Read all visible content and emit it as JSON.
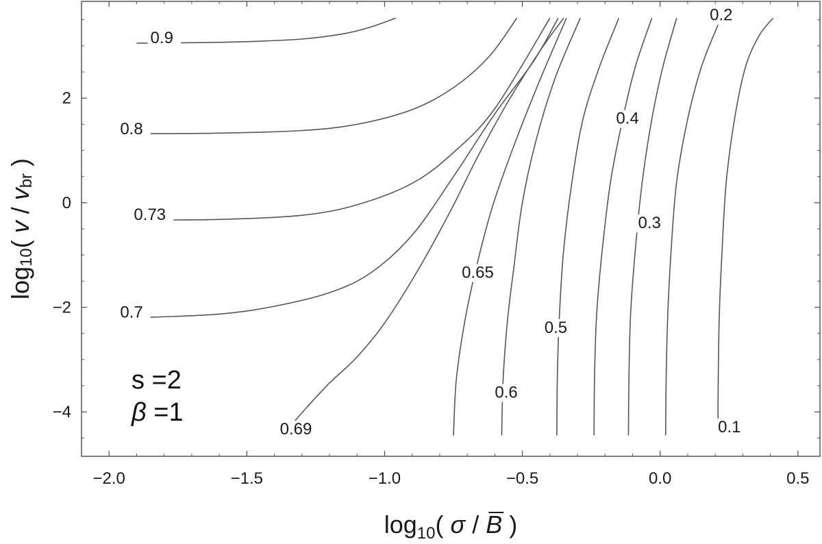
{
  "chart_data": {
    "type": "contour",
    "title": "",
    "xlabel": {
      "prefix": "log",
      "sub": "10",
      "open": "( ",
      "num": "σ",
      "slash": " / ",
      "den": "B",
      "close": " )"
    },
    "ylabel": {
      "prefix": "log",
      "sub": "10",
      "open": "( ",
      "num": "v",
      "slash": " / ",
      "den": "v",
      "den_sub": "br",
      "close": " )"
    },
    "xlim": [
      -2.1,
      0.58
    ],
    "ylim": [
      -4.85,
      3.85
    ],
    "x_ticks": [
      -2.0,
      -1.5,
      -1.0,
      -0.5,
      0.0,
      0.5
    ],
    "x_tick_labels": [
      "−2.0",
      "−1.5",
      "−1.0",
      "−0.5",
      "0.0",
      "0.5"
    ],
    "y_ticks": [
      -4,
      -2,
      0,
      2
    ],
    "y_tick_labels": [
      "−4",
      "−2",
      "0",
      "2"
    ],
    "grid": false,
    "annotation": {
      "line1": "s =2",
      "line2_symbol": "β",
      "line2_value": " =1"
    },
    "contours": [
      {
        "label": "0.9",
        "label_at": [
          -1.85,
          3.05
        ],
        "points": [
          [
            -1.9,
            3.05
          ],
          [
            -1.7,
            3.06
          ],
          [
            -1.5,
            3.08
          ],
          [
            -1.3,
            3.13
          ],
          [
            -1.15,
            3.23
          ],
          [
            -1.05,
            3.36
          ],
          [
            -0.96,
            3.53
          ]
        ]
      },
      {
        "label": "0.8",
        "label_at": [
          -1.96,
          1.31
        ],
        "points": [
          [
            -1.9,
            1.32
          ],
          [
            -1.6,
            1.33
          ],
          [
            -1.3,
            1.38
          ],
          [
            -1.1,
            1.5
          ],
          [
            -0.9,
            1.78
          ],
          [
            -0.75,
            2.2
          ],
          [
            -0.62,
            2.8
          ],
          [
            -0.52,
            3.53
          ]
        ]
      },
      {
        "label": "0.73",
        "label_at": [
          -1.91,
          -0.33
        ],
        "points": [
          [
            -1.9,
            -0.33
          ],
          [
            -1.6,
            -0.32
          ],
          [
            -1.3,
            -0.24
          ],
          [
            -1.1,
            -0.04
          ],
          [
            -0.9,
            0.37
          ],
          [
            -0.75,
            0.96
          ],
          [
            -0.6,
            1.8
          ],
          [
            -0.4,
            3.53
          ]
        ]
      },
      {
        "label": "0.7",
        "label_at": [
          -1.96,
          -2.2
        ],
        "points": [
          [
            -1.9,
            -2.2
          ],
          [
            -1.6,
            -2.13
          ],
          [
            -1.4,
            -1.98
          ],
          [
            -1.2,
            -1.72
          ],
          [
            -1.05,
            -1.34
          ],
          [
            -0.9,
            -0.62
          ],
          [
            -0.75,
            0.5
          ],
          [
            -0.6,
            1.7
          ],
          [
            -0.46,
            2.7
          ],
          [
            -0.37,
            3.53
          ]
        ]
      },
      {
        "label": "0.69",
        "label_at": [
          -1.38,
          -4.43
        ],
        "points": [
          [
            -1.35,
            -4.32
          ],
          [
            -1.28,
            -3.9
          ],
          [
            -1.2,
            -3.45
          ],
          [
            -1.1,
            -2.95
          ],
          [
            -1.0,
            -2.3
          ],
          [
            -0.88,
            -1.3
          ],
          [
            -0.76,
            -0.15
          ],
          [
            -0.66,
            0.9
          ],
          [
            -0.55,
            1.95
          ],
          [
            -0.43,
            2.95
          ],
          [
            -0.35,
            3.53
          ]
        ]
      },
      {
        "label": "0.65",
        "label_at": [
          -0.72,
          -1.44
        ],
        "points": [
          [
            -0.75,
            -4.45
          ],
          [
            -0.74,
            -3.4
          ],
          [
            -0.71,
            -2.3
          ],
          [
            -0.67,
            -1.3
          ],
          [
            -0.61,
            -0.1
          ],
          [
            -0.53,
            1.1
          ],
          [
            -0.44,
            2.3
          ],
          [
            -0.34,
            3.53
          ]
        ]
      },
      {
        "label": "0.6",
        "label_at": [
          -0.6,
          -3.73
        ],
        "points": [
          [
            -0.575,
            -4.45
          ],
          [
            -0.57,
            -3.4
          ],
          [
            -0.555,
            -2.3
          ],
          [
            -0.53,
            -1.2
          ],
          [
            -0.5,
            0.0
          ],
          [
            -0.45,
            1.2
          ],
          [
            -0.38,
            2.4
          ],
          [
            -0.29,
            3.53
          ]
        ]
      },
      {
        "label": "0.5",
        "label_at": [
          -0.42,
          -2.49
        ],
        "points": [
          [
            -0.375,
            -4.45
          ],
          [
            -0.373,
            -3.3
          ],
          [
            -0.365,
            -2.1
          ],
          [
            -0.35,
            -0.9
          ],
          [
            -0.32,
            0.4
          ],
          [
            -0.28,
            1.6
          ],
          [
            -0.22,
            2.6
          ],
          [
            -0.15,
            3.53
          ]
        ]
      },
      {
        "label": "0.4",
        "label_at": [
          -0.16,
          1.51
        ],
        "points": [
          [
            -0.24,
            -4.45
          ],
          [
            -0.238,
            -3.3
          ],
          [
            -0.23,
            -2.1
          ],
          [
            -0.21,
            -0.9
          ],
          [
            -0.18,
            0.4
          ],
          [
            -0.14,
            1.5
          ],
          [
            -0.09,
            2.6
          ],
          [
            -0.03,
            3.53
          ]
        ]
      },
      {
        "label": "0.3",
        "label_at": [
          -0.08,
          -0.49
        ],
        "points": [
          [
            -0.115,
            -4.45
          ],
          [
            -0.113,
            -3.3
          ],
          [
            -0.107,
            -2.1
          ],
          [
            -0.09,
            -0.9
          ],
          [
            -0.065,
            0.4
          ],
          [
            -0.03,
            1.6
          ],
          [
            0.01,
            2.6
          ],
          [
            0.06,
            3.53
          ]
        ]
      },
      {
        "label": "0.2",
        "label_at": [
          0.18,
          3.49
        ],
        "points": [
          [
            0.02,
            -4.45
          ],
          [
            0.022,
            -3.3
          ],
          [
            0.028,
            -2.1
          ],
          [
            0.04,
            -0.9
          ],
          [
            0.06,
            0.4
          ],
          [
            0.1,
            1.6
          ],
          [
            0.15,
            2.6
          ],
          [
            0.21,
            3.4
          ]
        ]
      },
      {
        "label": "0.1",
        "label_at": [
          0.21,
          -4.39
        ],
        "points": [
          [
            0.21,
            -4.3
          ],
          [
            0.211,
            -3.3
          ],
          [
            0.215,
            -2.1
          ],
          [
            0.225,
            -0.9
          ],
          [
            0.24,
            0.4
          ],
          [
            0.27,
            1.6
          ],
          [
            0.31,
            2.6
          ],
          [
            0.36,
            3.2
          ],
          [
            0.41,
            3.53
          ]
        ]
      }
    ]
  }
}
